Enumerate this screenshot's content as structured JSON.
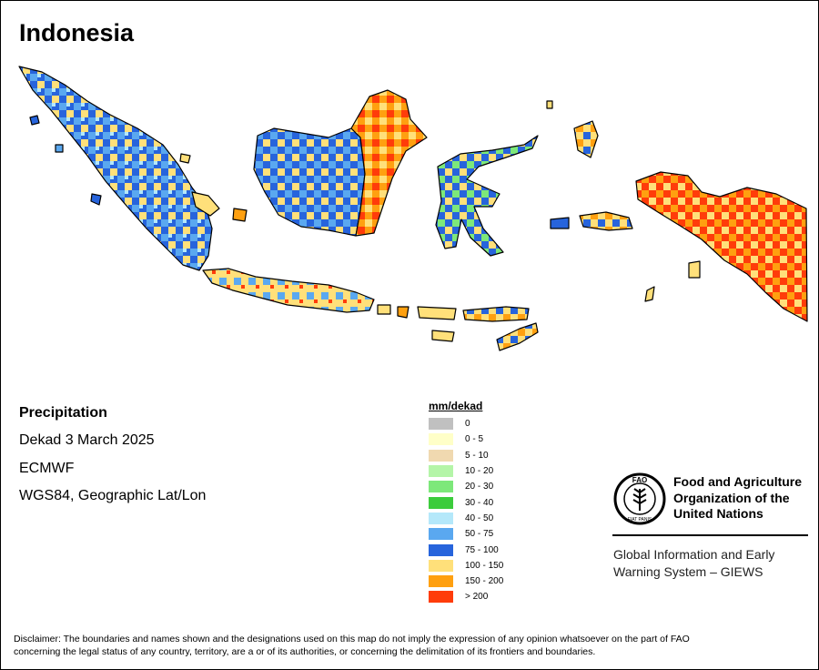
{
  "map": {
    "title": "Indonesia"
  },
  "info": {
    "heading": "Precipitation",
    "period": "Dekad 3 March 2025",
    "source": "ECMWF",
    "crs": "WGS84, Geographic Lat/Lon"
  },
  "legend": {
    "title": "mm/dekad",
    "classes": [
      {
        "label": "0",
        "color": "#c0c0c0"
      },
      {
        "label": "0 - 5",
        "color": "#ffffc8"
      },
      {
        "label": "5 - 10",
        "color": "#f0d9b0"
      },
      {
        "label": "10 - 20",
        "color": "#b4f5a8"
      },
      {
        "label": "20 - 30",
        "color": "#7de87a"
      },
      {
        "label": "30 - 40",
        "color": "#3ccc3c"
      },
      {
        "label": "40 - 50",
        "color": "#b4e8fa"
      },
      {
        "label": "50 - 75",
        "color": "#5aa8f0"
      },
      {
        "label": "75 - 100",
        "color": "#2764dc"
      },
      {
        "label": "100 - 150",
        "color": "#ffe07a"
      },
      {
        "label": "150 - 200",
        "color": "#ffa010"
      },
      {
        "label": "> 200",
        "color": "#ff3c0a"
      }
    ]
  },
  "organization": {
    "name_line1": "Food and Agriculture",
    "name_line2": "Organization of the",
    "name_line3": "United Nations",
    "logo_text": "FAO",
    "logo_motto": "FIAT PANIS",
    "system_line1": "Global Information and Early",
    "system_line2": "Warning System – GIEWS"
  },
  "disclaimer": {
    "line1": "Disclaimer: The boundaries and names shown and the designations used on this map do not imply the expression of any opinion whatsoever on the part of FAO",
    "line2": "concerning the legal status of any country, territory, are a or of its authorities, or concerning the delimitation of its frontiers and boundaries."
  }
}
